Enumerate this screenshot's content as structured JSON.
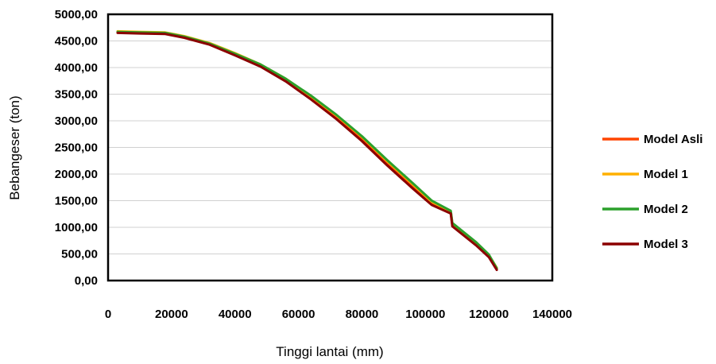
{
  "chart_data": {
    "type": "line",
    "title": "",
    "xlabel": "Tinggi lantai (mm)",
    "ylabel": "Bebangeser (ton)",
    "xlim": [
      0,
      140000
    ],
    "ylim": [
      0,
      5000
    ],
    "x_ticks": [
      0,
      20000,
      40000,
      60000,
      80000,
      100000,
      120000,
      140000
    ],
    "x_tick_labels": [
      "0",
      "20000",
      "40000",
      "60000",
      "80000",
      "100000",
      "120000",
      "140000"
    ],
    "y_ticks": [
      0,
      500,
      1000,
      1500,
      2000,
      2500,
      3000,
      3500,
      4000,
      4500,
      5000
    ],
    "y_tick_labels": [
      "0,00",
      "500,00",
      "1000,00",
      "1500,00",
      "2000,00",
      "2500,00",
      "3000,00",
      "3500,00",
      "4000,00",
      "4500,00",
      "5000,00"
    ],
    "grid": "horizontal",
    "legend_position": "right",
    "series": [
      {
        "name": "Model Asli",
        "color": "#ff4500",
        "points": [
          [
            3000,
            4660
          ],
          [
            10000,
            4650
          ],
          [
            18000,
            4640
          ],
          [
            24000,
            4570
          ],
          [
            32000,
            4440
          ],
          [
            40000,
            4250
          ],
          [
            48000,
            4040
          ],
          [
            56000,
            3760
          ],
          [
            64000,
            3420
          ],
          [
            72000,
            3060
          ],
          [
            80000,
            2650
          ],
          [
            88000,
            2190
          ],
          [
            96000,
            1760
          ],
          [
            102000,
            1440
          ],
          [
            108000,
            1270
          ],
          [
            108500,
            1040
          ],
          [
            116000,
            680
          ],
          [
            120000,
            460
          ],
          [
            122500,
            220
          ]
        ]
      },
      {
        "name": "Model 1",
        "color": "#ffb000",
        "points": [
          [
            3000,
            4680
          ],
          [
            10000,
            4670
          ],
          [
            18000,
            4660
          ],
          [
            24000,
            4590
          ],
          [
            32000,
            4460
          ],
          [
            40000,
            4270
          ],
          [
            48000,
            4060
          ],
          [
            56000,
            3790
          ],
          [
            64000,
            3460
          ],
          [
            72000,
            3100
          ],
          [
            80000,
            2700
          ],
          [
            88000,
            2240
          ],
          [
            96000,
            1810
          ],
          [
            102000,
            1480
          ],
          [
            108000,
            1300
          ],
          [
            108500,
            1070
          ],
          [
            116000,
            710
          ],
          [
            120000,
            480
          ],
          [
            122500,
            240
          ]
        ]
      },
      {
        "name": "Model 2",
        "color": "#2ca02c",
        "points": [
          [
            3000,
            4670
          ],
          [
            10000,
            4660
          ],
          [
            18000,
            4650
          ],
          [
            24000,
            4580
          ],
          [
            32000,
            4450
          ],
          [
            40000,
            4260
          ],
          [
            48000,
            4060
          ],
          [
            56000,
            3790
          ],
          [
            64000,
            3470
          ],
          [
            72000,
            3110
          ],
          [
            80000,
            2710
          ],
          [
            88000,
            2260
          ],
          [
            96000,
            1830
          ],
          [
            102000,
            1500
          ],
          [
            108000,
            1310
          ],
          [
            108500,
            1080
          ],
          [
            116000,
            720
          ],
          [
            120000,
            490
          ],
          [
            122500,
            230
          ]
        ]
      },
      {
        "name": "Model 3",
        "color": "#8b0000",
        "points": [
          [
            3000,
            4650
          ],
          [
            10000,
            4640
          ],
          [
            18000,
            4630
          ],
          [
            24000,
            4560
          ],
          [
            32000,
            4430
          ],
          [
            40000,
            4230
          ],
          [
            48000,
            4020
          ],
          [
            56000,
            3740
          ],
          [
            64000,
            3400
          ],
          [
            72000,
            3030
          ],
          [
            80000,
            2620
          ],
          [
            88000,
            2160
          ],
          [
            96000,
            1730
          ],
          [
            102000,
            1420
          ],
          [
            108000,
            1260
          ],
          [
            108500,
            1020
          ],
          [
            116000,
            660
          ],
          [
            120000,
            440
          ],
          [
            122500,
            200
          ]
        ]
      }
    ]
  }
}
